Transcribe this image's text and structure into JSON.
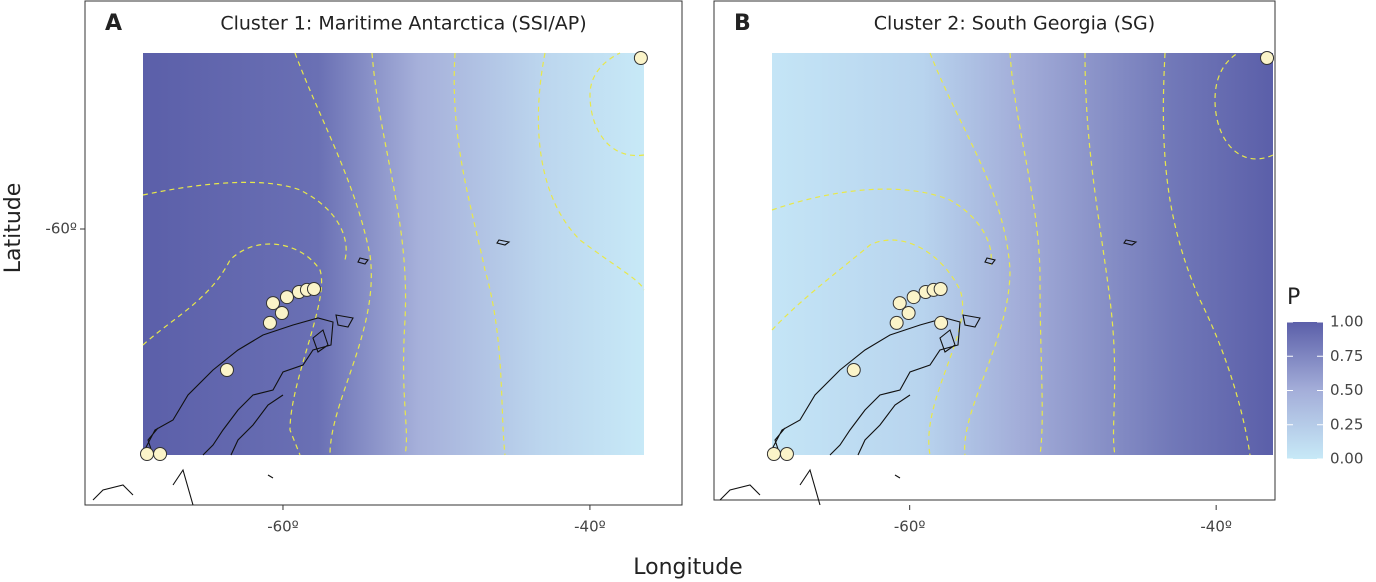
{
  "x_axis_title": "Longitude",
  "y_axis_title": "Latitude",
  "legend": {
    "title": "P",
    "lim": [
      0,
      1
    ],
    "ticks": [
      {
        "value": 0,
        "label": "0.00"
      },
      {
        "value": 0.25,
        "label": "0.25"
      },
      {
        "value": 0.5,
        "label": "0.50"
      },
      {
        "value": 0.75,
        "label": "0.75"
      },
      {
        "value": 1,
        "label": "1.00"
      }
    ]
  },
  "chart_data": [
    {
      "type": "map",
      "label": "A",
      "title": "Cluster 1: Maritime Antarctica (SSI/AP)",
      "xlim": [
        -72.9,
        -34.0
      ],
      "ylim": [
        -69.2,
        -52.4
      ],
      "xticks": [
        {
          "value": -60,
          "label": "-60º"
        },
        {
          "value": -40,
          "label": "-40º"
        }
      ],
      "yticks": [
        {
          "value": -60,
          "label": "-60º"
        }
      ],
      "x": [
        -60.65,
        -59.74,
        -58.96,
        -58.44,
        -57.98,
        -60.07,
        -60.85,
        -63.65,
        -68.86,
        -68.01,
        -36.68
      ],
      "y": [
        -62.47,
        -62.27,
        -62.1,
        -62.03,
        -62.0,
        -62.8,
        -63.13,
        -64.7,
        -67.5,
        -67.5,
        -54.3
      ]
    },
    {
      "type": "map",
      "label": "B",
      "title": "Cluster 2: South Georgia (SG)",
      "xlim": [
        -72.77,
        -36.16
      ],
      "ylim": [
        -69.2,
        -52.4
      ],
      "xticks": [
        {
          "value": -60,
          "label": "-60º"
        },
        {
          "value": -40,
          "label": "-40º"
        }
      ],
      "x": [
        -60.65,
        -59.74,
        -58.96,
        -58.44,
        -57.98,
        -60.07,
        -60.85,
        -63.65,
        -68.86,
        -68.01,
        -36.68,
        -57.95
      ],
      "y": [
        -62.47,
        -62.27,
        -62.1,
        -62.03,
        -62.0,
        -62.8,
        -63.13,
        -64.7,
        -67.5,
        -67.5,
        -54.3,
        -63.13
      ]
    }
  ]
}
